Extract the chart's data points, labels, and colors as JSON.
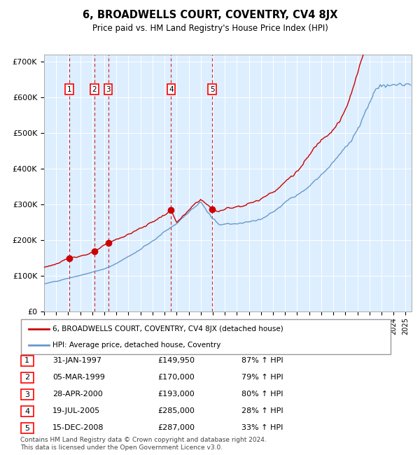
{
  "title": "6, BROADWELLS COURT, COVENTRY, CV4 8JX",
  "subtitle": "Price paid vs. HM Land Registry's House Price Index (HPI)",
  "footer": "Contains HM Land Registry data © Crown copyright and database right 2024.\nThis data is licensed under the Open Government Licence v3.0.",
  "legend_line1": "6, BROADWELLS COURT, COVENTRY, CV4 8JX (detached house)",
  "legend_line2": "HPI: Average price, detached house, Coventry",
  "sale_dates": [
    1997.08,
    1999.18,
    2000.32,
    2005.54,
    2008.96
  ],
  "sale_prices": [
    149950,
    170000,
    193000,
    285000,
    287000
  ],
  "sale_labels": [
    "1",
    "2",
    "3",
    "4",
    "5"
  ],
  "table_rows": [
    [
      "1",
      "31-JAN-1997",
      "£149,950",
      "87% ↑ HPI"
    ],
    [
      "2",
      "05-MAR-1999",
      "£170,000",
      "79% ↑ HPI"
    ],
    [
      "3",
      "28-APR-2000",
      "£193,000",
      "80% ↑ HPI"
    ],
    [
      "4",
      "19-JUL-2005",
      "£285,000",
      "28% ↑ HPI"
    ],
    [
      "5",
      "15-DEC-2008",
      "£287,000",
      "33% ↑ HPI"
    ]
  ],
  "hpi_color": "#6699cc",
  "price_color": "#cc0000",
  "vline_color": "#cc0000",
  "background_color": "#ddeeff",
  "ylim": [
    0,
    720000
  ],
  "xlim_start": 1995.0,
  "xlim_end": 2025.5,
  "ylabel_ticks": [
    0,
    100000,
    200000,
    300000,
    400000,
    500000,
    600000,
    700000
  ]
}
